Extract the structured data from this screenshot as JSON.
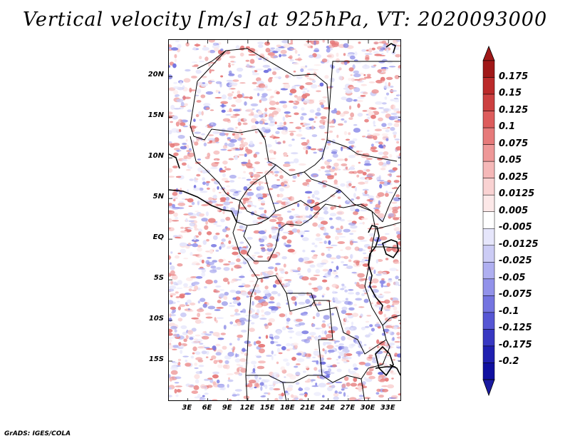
{
  "title": "Vertical velocity [m/s] at 925hPa, VT: 2020093000",
  "credit": "GrADS: IGES/COLA",
  "map": {
    "lat_labels": [
      "20N",
      "15N",
      "10N",
      "5N",
      "EQ",
      "5S",
      "10S",
      "15S"
    ],
    "lon_labels": [
      "3E",
      "6E",
      "9E",
      "12E",
      "15E",
      "18E",
      "21E",
      "24E",
      "27E",
      "30E",
      "33E"
    ],
    "lat_values": [
      20,
      15,
      10,
      5,
      0,
      -5,
      -10,
      -15
    ],
    "lon_values": [
      3,
      6,
      9,
      12,
      15,
      18,
      21,
      24,
      27,
      30,
      33
    ],
    "lat_range": [
      -20,
      24.5
    ],
    "lon_range": [
      0.2,
      35
    ]
  },
  "colorbar": {
    "labels": [
      "0.175",
      "0.15",
      "0.125",
      "0.1",
      "0.075",
      "0.05",
      "0.025",
      "0.0125",
      "0.005",
      "-0.005",
      "-0.0125",
      "-0.025",
      "-0.05",
      "-0.075",
      "-0.1",
      "-0.125",
      "-0.175",
      "-0.2"
    ],
    "colors": [
      "#a01818",
      "#bb2a2a",
      "#cc4040",
      "#dd5c5c",
      "#e67a7a",
      "#ee9898",
      "#f5b8b8",
      "#f9d2d2",
      "#fce8e8",
      "#ffffff",
      "#e6e6fb",
      "#ccccf5",
      "#afaff0",
      "#9292ea",
      "#7474e0",
      "#5656d4",
      "#3838c2",
      "#2020b0",
      "#1010a0"
    ],
    "top_color": "#a01818",
    "bottom_color": "#1a1aa0"
  }
}
